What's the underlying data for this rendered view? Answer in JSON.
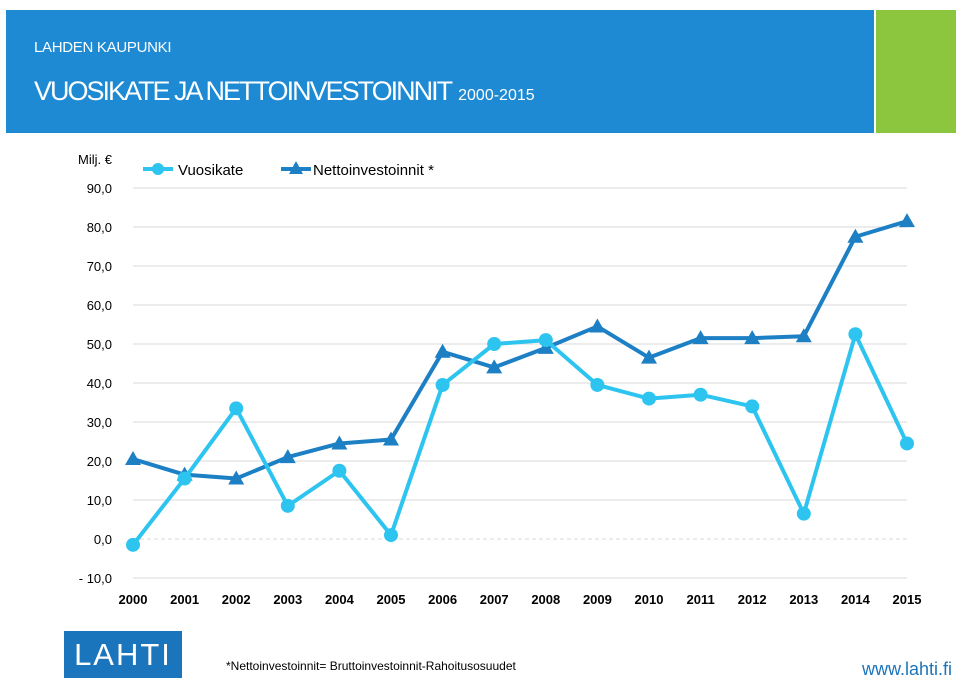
{
  "header": {
    "org": "LAHDEN KAUPUNKI",
    "title_main": "VUOSIKATE JA NETTOINVESTOINNIT",
    "title_years": "2000-2015",
    "bg_color": "#1d8ad3",
    "accent_color": "#8cc63f"
  },
  "chart_data": {
    "type": "line",
    "title": "",
    "ylabel": "Milj. €",
    "xlabel": "",
    "x": [
      "2000",
      "2001",
      "2002",
      "2003",
      "2004",
      "2005",
      "2006",
      "2007",
      "2008",
      "2009",
      "2010",
      "2011",
      "2012",
      "2013",
      "2014",
      "2015"
    ],
    "ylim": [
      -10,
      90
    ],
    "yticks": [
      "90,0",
      "80,0",
      "70,0",
      "60,0",
      "50,0",
      "40,0",
      "30,0",
      "20,0",
      "10,0",
      "0,0",
      "- 10,0"
    ],
    "ytick_values": [
      90,
      80,
      70,
      60,
      50,
      40,
      30,
      20,
      10,
      0,
      -10
    ],
    "grid": true,
    "legend_position": "top-left",
    "series": [
      {
        "name": "Vuosikate",
        "marker": "circle",
        "color": "#2ec4f0",
        "values": [
          -1.5,
          15.5,
          33.5,
          8.5,
          17.5,
          1.0,
          39.5,
          50.0,
          51.0,
          39.5,
          36.0,
          37.0,
          34.0,
          6.5,
          52.5,
          24.5
        ]
      },
      {
        "name": "Nettoinvestoinnit *",
        "marker": "triangle",
        "color": "#1d7fc4",
        "values": [
          20.5,
          16.5,
          15.5,
          21.0,
          24.5,
          25.5,
          48.0,
          44.0,
          49.0,
          54.5,
          46.5,
          51.5,
          51.5,
          52.0,
          77.5,
          81.5
        ]
      }
    ]
  },
  "footer": {
    "logo_text": "LAHTI",
    "footnote": "*Nettoinvestoinnit=  Bruttoinvestoinnit-Rahoitusosuudet",
    "url": "www.lahti.fi"
  }
}
